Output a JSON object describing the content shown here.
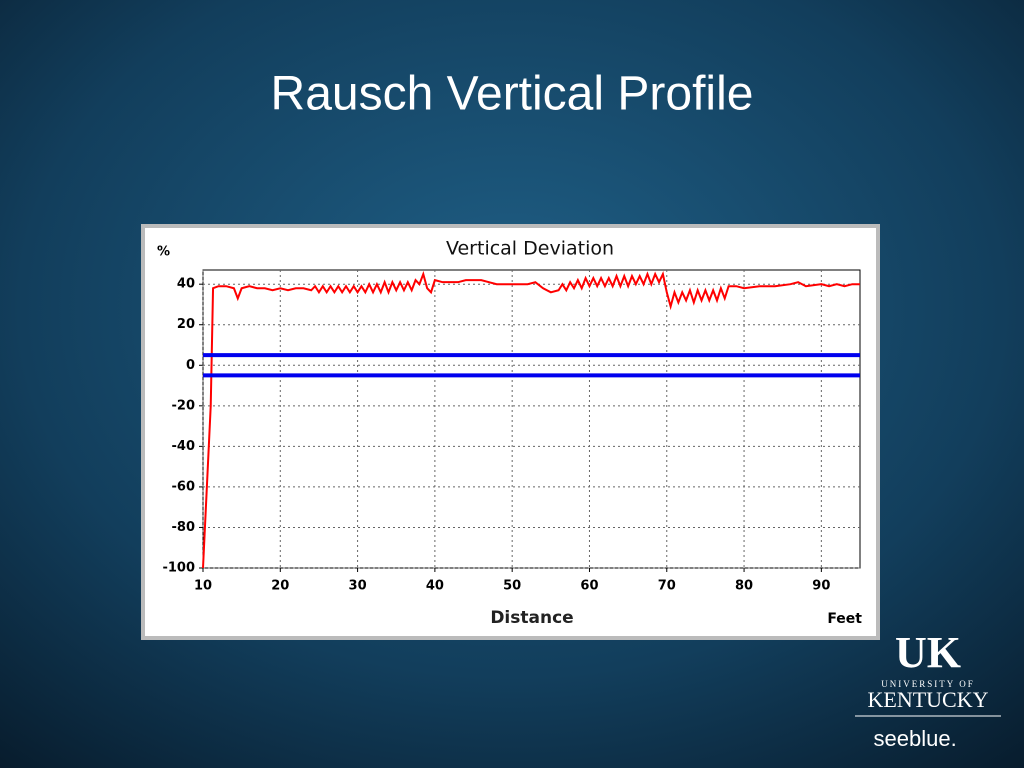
{
  "slide": {
    "title": "Rausch Vertical Profile"
  },
  "logo": {
    "mark": "UK",
    "line1": "UNIVERSITY OF",
    "line2": "KENTUCKY",
    "tag1": "see",
    "tag2": "blue."
  },
  "chart_data": {
    "type": "line",
    "title": "Vertical Deviation",
    "y_label": "%",
    "x_label": "Distance",
    "x_unit": "Feet",
    "xlim": [
      10,
      95
    ],
    "ylim": [
      -100,
      47
    ],
    "xticks": [
      10,
      20,
      30,
      40,
      50,
      60,
      70,
      80,
      90
    ],
    "yticks": [
      -100,
      -80,
      -60,
      -40,
      -20,
      0,
      20,
      40
    ],
    "grid": true,
    "series": [
      {
        "color": "#ff0000",
        "x": [
          10,
          10.5,
          11,
          11.3,
          12,
          13,
          14,
          14.5,
          15,
          16,
          17,
          18,
          19,
          20,
          21,
          22,
          23,
          24,
          24.5,
          25,
          25.5,
          26,
          26.5,
          27,
          27.5,
          28,
          28.5,
          29,
          29.5,
          30,
          30.5,
          31,
          31.5,
          32,
          32.5,
          33,
          33.5,
          34,
          34.5,
          35,
          35.5,
          36,
          36.5,
          37,
          37.5,
          38,
          38.5,
          39,
          39.5,
          40,
          41,
          42,
          43,
          44,
          45,
          46,
          47,
          48,
          50,
          52,
          53,
          54,
          55,
          56,
          56.5,
          57,
          57.5,
          58,
          58.5,
          59,
          59.5,
          60,
          60.5,
          61,
          61.5,
          62,
          62.5,
          63,
          63.5,
          64,
          64.5,
          65,
          65.5,
          66,
          66.5,
          67,
          67.5,
          68,
          68.5,
          69,
          69.5,
          70,
          70.5,
          71,
          71.5,
          72,
          72.5,
          73,
          73.5,
          74,
          74.5,
          75,
          75.5,
          76,
          76.5,
          77,
          77.5,
          78,
          79,
          80,
          82,
          84,
          86,
          87,
          88,
          90,
          91,
          92,
          93,
          94,
          95
        ],
        "values": [
          -100,
          -60,
          -20,
          38,
          39,
          39,
          38,
          33,
          38,
          39,
          38,
          38,
          37,
          38,
          37,
          38,
          38,
          37,
          39,
          36,
          39,
          36,
          39,
          36,
          39,
          36,
          39,
          36,
          39,
          36,
          39,
          36,
          40,
          36,
          40,
          36,
          41,
          36,
          41,
          37,
          41,
          37,
          41,
          37,
          42,
          40,
          45,
          38,
          36,
          42,
          41,
          41,
          41,
          42,
          42,
          42,
          41,
          40,
          40,
          40,
          41,
          38,
          36,
          37,
          40,
          37,
          41,
          38,
          42,
          38,
          43,
          39,
          43,
          39,
          43,
          39,
          43,
          39,
          44,
          39,
          44,
          39,
          44,
          40,
          44,
          40,
          45,
          40,
          45,
          41,
          45,
          36,
          29,
          36,
          31,
          36,
          32,
          37,
          31,
          37,
          32,
          37,
          32,
          37,
          32,
          38,
          33,
          39,
          39,
          38,
          39,
          39,
          40,
          41,
          39,
          40,
          39,
          40,
          39,
          40,
          40
        ]
      },
      {
        "color": "#0000ee",
        "x": [
          10,
          95
        ],
        "values": [
          5,
          5
        ]
      },
      {
        "color": "#0000ee",
        "x": [
          10,
          95
        ],
        "values": [
          -5,
          -5
        ]
      }
    ]
  }
}
